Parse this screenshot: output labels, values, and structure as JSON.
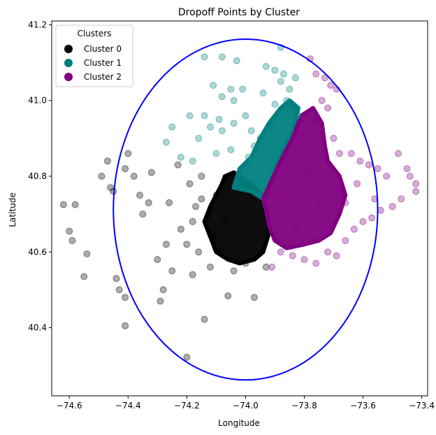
{
  "chart_data": {
    "type": "scatter",
    "title": "Dropoff Points by Cluster",
    "xlabel": "Longitude",
    "ylabel": "Latitude",
    "xlim": [
      -74.66,
      -73.38
    ],
    "ylim": [
      40.22,
      41.21
    ],
    "xticks": [
      -74.6,
      -74.4,
      -74.2,
      -74.0,
      -73.8,
      -73.6,
      -73.4
    ],
    "xtick_labels": [
      "−74.6",
      "−74.4",
      "−74.2",
      "−74.0",
      "−73.8",
      "−73.6",
      "−73.4"
    ],
    "yticks": [
      40.4,
      40.6,
      40.8,
      41.0,
      41.2
    ],
    "ytick_labels": [
      "40.4",
      "40.6",
      "40.8",
      "41.0",
      "41.2"
    ],
    "grid": false,
    "legend": {
      "title": "Clusters",
      "placement": "top-left",
      "entries": [
        "Cluster 0",
        "Cluster 1",
        "Cluster 2"
      ]
    },
    "boundary_circle": {
      "center": [
        -74.0,
        40.712
      ],
      "radius_deg": 0.45,
      "color": "#0000ff"
    },
    "series": [
      {
        "name": "Cluster 0",
        "color": "#000000",
        "points": [
          [
            -74.62,
            40.725
          ],
          [
            -74.58,
            40.725
          ],
          [
            -74.6,
            40.655
          ],
          [
            -74.59,
            40.63
          ],
          [
            -74.55,
            40.535
          ],
          [
            -74.54,
            40.595
          ],
          [
            -74.49,
            40.8
          ],
          [
            -74.47,
            40.84
          ],
          [
            -74.46,
            40.77
          ],
          [
            -74.45,
            40.76
          ],
          [
            -74.44,
            40.53
          ],
          [
            -74.43,
            40.5
          ],
          [
            -74.41,
            40.82
          ],
          [
            -74.4,
            40.86
          ],
          [
            -74.41,
            40.48
          ],
          [
            -74.38,
            40.8
          ],
          [
            -74.36,
            40.75
          ],
          [
            -74.35,
            40.7
          ],
          [
            -74.33,
            40.73
          ],
          [
            -74.32,
            40.81
          ],
          [
            -74.3,
            40.58
          ],
          [
            -74.28,
            40.5
          ],
          [
            -74.29,
            40.47
          ],
          [
            -74.41,
            40.405
          ],
          [
            -74.27,
            40.62
          ],
          [
            -74.26,
            40.73
          ],
          [
            -74.25,
            40.55
          ],
          [
            -74.23,
            40.83
          ],
          [
            -74.22,
            40.66
          ],
          [
            -74.2,
            40.62
          ],
          [
            -74.19,
            40.78
          ],
          [
            -74.18,
            40.54
          ],
          [
            -74.17,
            40.72
          ],
          [
            -74.16,
            40.6
          ],
          [
            -74.15,
            40.8
          ],
          [
            -74.14,
            40.422
          ],
          [
            -74.2,
            40.322
          ],
          [
            -74.13,
            40.69
          ],
          [
            -74.12,
            40.56
          ],
          [
            -74.11,
            40.64
          ],
          [
            -74.1,
            40.75
          ],
          [
            -74.09,
            40.6
          ],
          [
            -74.07,
            40.68
          ],
          [
            -74.06,
            40.484
          ],
          [
            -74.04,
            40.55
          ],
          [
            -74.0,
            40.57
          ],
          [
            -73.97,
            40.48
          ],
          [
            -73.93,
            40.56
          ],
          [
            -74.18,
            40.68
          ],
          [
            -74.15,
            40.74
          ]
        ]
      },
      {
        "name": "Cluster 1",
        "color": "#008080",
        "points": [
          [
            -74.14,
            41.115
          ],
          [
            -74.08,
            41.115
          ],
          [
            -74.03,
            41.105
          ],
          [
            -74.11,
            41.04
          ],
          [
            -74.08,
            41.01
          ],
          [
            -74.05,
            41.03
          ],
          [
            -74.01,
            41.03
          ],
          [
            -74.04,
            41.0
          ],
          [
            -74.19,
            40.96
          ],
          [
            -74.14,
            40.96
          ],
          [
            -74.09,
            40.95
          ],
          [
            -74.16,
            40.9
          ],
          [
            -74.12,
            40.93
          ],
          [
            -74.08,
            40.92
          ],
          [
            -74.04,
            40.94
          ],
          [
            -74.0,
            40.96
          ],
          [
            -73.98,
            40.92
          ],
          [
            -73.94,
            41.02
          ],
          [
            -73.93,
            41.09
          ],
          [
            -73.9,
            41.08
          ],
          [
            -73.87,
            41.07
          ],
          [
            -73.88,
            41.14
          ],
          [
            -73.86,
            41.0
          ],
          [
            -73.84,
            40.98
          ],
          [
            -73.82,
            40.96
          ],
          [
            -74.22,
            40.85
          ],
          [
            -74.18,
            40.84
          ],
          [
            -74.1,
            40.86
          ],
          [
            -74.05,
            40.87
          ],
          [
            -74.02,
            40.81
          ],
          [
            -73.99,
            40.85
          ],
          [
            -73.97,
            40.88
          ],
          [
            -73.95,
            40.9
          ],
          [
            -73.91,
            40.93
          ],
          [
            -73.9,
            40.99
          ],
          [
            -73.88,
            41.05
          ],
          [
            -73.85,
            41.03
          ],
          [
            -73.83,
            41.06
          ],
          [
            -74.27,
            40.89
          ],
          [
            -74.25,
            40.93
          ]
        ]
      },
      {
        "name": "Cluster 2",
        "color": "#800080",
        "points": [
          [
            -73.78,
            41.11
          ],
          [
            -73.76,
            41.07
          ],
          [
            -73.73,
            41.06
          ],
          [
            -73.71,
            41.04
          ],
          [
            -73.69,
            41.03
          ],
          [
            -73.74,
            41.0
          ],
          [
            -73.72,
            40.98
          ],
          [
            -73.77,
            40.95
          ],
          [
            -73.7,
            40.9
          ],
          [
            -73.68,
            40.86
          ],
          [
            -73.64,
            40.86
          ],
          [
            -73.61,
            40.84
          ],
          [
            -73.58,
            40.83
          ],
          [
            -73.55,
            40.82
          ],
          [
            -73.52,
            40.8
          ],
          [
            -73.48,
            40.86
          ],
          [
            -73.45,
            40.82
          ],
          [
            -73.42,
            40.78
          ],
          [
            -73.42,
            40.76
          ],
          [
            -73.44,
            40.8
          ],
          [
            -73.47,
            40.74
          ],
          [
            -73.5,
            40.72
          ],
          [
            -73.54,
            40.71
          ],
          [
            -73.57,
            40.69
          ],
          [
            -73.6,
            40.68
          ],
          [
            -73.63,
            40.66
          ],
          [
            -73.66,
            40.63
          ],
          [
            -73.69,
            40.59
          ],
          [
            -73.72,
            40.6
          ],
          [
            -73.76,
            40.57
          ],
          [
            -73.8,
            40.58
          ],
          [
            -73.84,
            40.59
          ],
          [
            -73.88,
            40.6
          ],
          [
            -73.91,
            40.56
          ],
          [
            -73.83,
            40.67
          ],
          [
            -73.66,
            40.73
          ],
          [
            -73.75,
            40.72
          ],
          [
            -73.79,
            40.81
          ],
          [
            -73.56,
            40.74
          ],
          [
            -73.62,
            40.78
          ]
        ]
      }
    ],
    "dense_regions": [
      {
        "series": "Cluster 0",
        "polygon": [
          [
            -74.07,
            40.8
          ],
          [
            -74.04,
            40.81
          ],
          [
            -74.0,
            40.79
          ],
          [
            -73.97,
            40.77
          ],
          [
            -73.94,
            40.75
          ],
          [
            -73.93,
            40.7
          ],
          [
            -73.92,
            40.65
          ],
          [
            -73.94,
            40.6
          ],
          [
            -73.97,
            40.58
          ],
          [
            -74.02,
            40.57
          ],
          [
            -74.06,
            40.58
          ],
          [
            -74.1,
            40.6
          ],
          [
            -74.12,
            40.64
          ],
          [
            -74.14,
            40.68
          ],
          [
            -74.12,
            40.72
          ],
          [
            -74.1,
            40.75
          ],
          [
            -74.08,
            40.78
          ]
        ]
      },
      {
        "series": "Cluster 1",
        "polygon": [
          [
            -74.04,
            40.77
          ],
          [
            -74.02,
            40.82
          ],
          [
            -73.98,
            40.85
          ],
          [
            -73.95,
            40.9
          ],
          [
            -73.92,
            40.94
          ],
          [
            -73.88,
            40.98
          ],
          [
            -73.85,
            41.0
          ],
          [
            -73.82,
            40.98
          ],
          [
            -73.84,
            40.92
          ],
          [
            -73.87,
            40.87
          ],
          [
            -73.9,
            40.82
          ],
          [
            -73.92,
            40.77
          ],
          [
            -73.94,
            40.74
          ],
          [
            -73.98,
            40.76
          ]
        ]
      },
      {
        "series": "Cluster 2",
        "polygon": [
          [
            -73.94,
            40.74
          ],
          [
            -73.91,
            40.79
          ],
          [
            -73.88,
            40.84
          ],
          [
            -73.84,
            40.9
          ],
          [
            -73.81,
            40.96
          ],
          [
            -73.77,
            40.98
          ],
          [
            -73.74,
            40.94
          ],
          [
            -73.73,
            40.88
          ],
          [
            -73.72,
            40.84
          ],
          [
            -73.68,
            40.8
          ],
          [
            -73.66,
            40.75
          ],
          [
            -73.68,
            40.7
          ],
          [
            -73.71,
            40.65
          ],
          [
            -73.75,
            40.63
          ],
          [
            -73.8,
            40.62
          ],
          [
            -73.86,
            40.61
          ],
          [
            -73.9,
            40.63
          ],
          [
            -73.92,
            40.67
          ],
          [
            -73.93,
            40.71
          ]
        ]
      }
    ]
  }
}
